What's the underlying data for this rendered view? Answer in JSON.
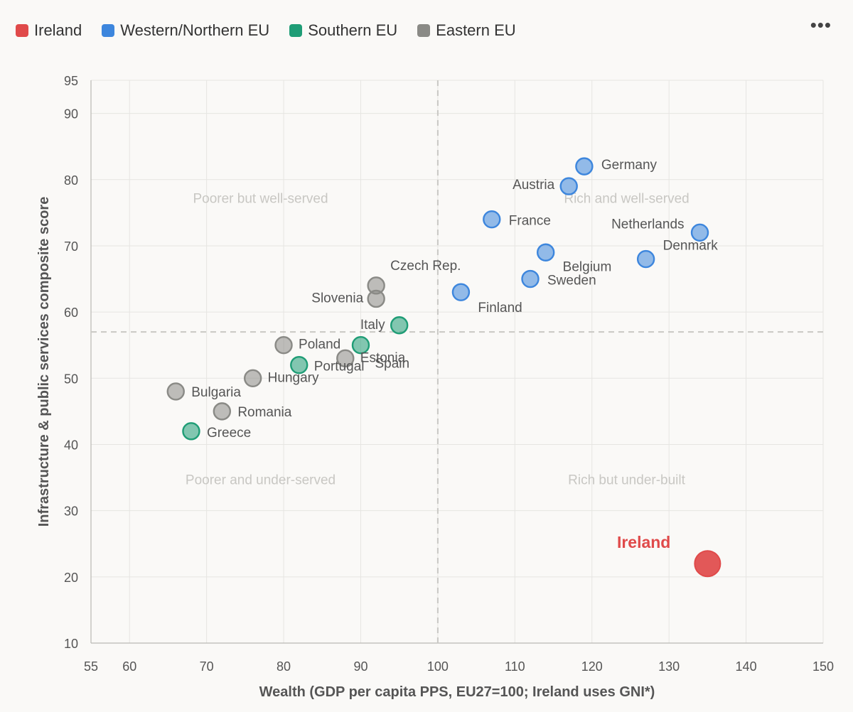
{
  "legend": {
    "items": [
      {
        "label": "Ireland",
        "color": "#e04a4a"
      },
      {
        "label": "Western/Northern EU",
        "color": "#3d86dd"
      },
      {
        "label": "Southern EU",
        "color": "#1f9d76"
      },
      {
        "label": "Eastern EU",
        "color": "#8a8a86"
      }
    ]
  },
  "menu": {
    "more_label": "•••"
  },
  "chart_data": {
    "type": "scatter",
    "title": "",
    "xlabel": "Wealth (GDP per capita PPS, EU27=100; Ireland uses GNI*)",
    "ylabel": "Infrastructure & public services composite score",
    "xlim": [
      55,
      150
    ],
    "ylim": [
      10,
      95
    ],
    "xticks": [
      55,
      60,
      70,
      80,
      90,
      100,
      110,
      120,
      130,
      140,
      150
    ],
    "yticks": [
      10,
      20,
      30,
      40,
      50,
      60,
      70,
      80,
      90,
      95
    ],
    "grid": true,
    "reference_lines": {
      "x": 100,
      "y": 57
    },
    "quadrant_labels": [
      {
        "text": "Poorer but well-served",
        "x": 77,
        "y": 76.5
      },
      {
        "text": "Rich and well-served",
        "x": 124.5,
        "y": 76.5
      },
      {
        "text": "Poorer and under-served",
        "x": 77,
        "y": 34
      },
      {
        "text": "Rich but under-built",
        "x": 124.5,
        "y": 34
      }
    ],
    "series": [
      {
        "name": "Ireland",
        "color": "#e04a4a",
        "points": [
          {
            "label": "Ireland",
            "x": 135,
            "y": 22
          }
        ]
      },
      {
        "name": "Western/Northern EU",
        "color": "#3d86dd",
        "points": [
          {
            "label": "Germany",
            "x": 119,
            "y": 82
          },
          {
            "label": "Austria",
            "x": 117,
            "y": 79
          },
          {
            "label": "France",
            "x": 107,
            "y": 74
          },
          {
            "label": "Netherlands",
            "x": 134,
            "y": 72
          },
          {
            "label": "Denmark",
            "x": 127,
            "y": 68
          },
          {
            "label": "Belgium",
            "x": 114,
            "y": 69
          },
          {
            "label": "Sweden",
            "x": 112,
            "y": 65
          },
          {
            "label": "Finland",
            "x": 103,
            "y": 63
          }
        ]
      },
      {
        "name": "Southern EU",
        "color": "#1f9d76",
        "points": [
          {
            "label": "Italy",
            "x": 95,
            "y": 58
          },
          {
            "label": "Spain",
            "x": 90,
            "y": 55
          },
          {
            "label": "Portugal",
            "x": 82,
            "y": 52
          },
          {
            "label": "Greece",
            "x": 68,
            "y": 42
          }
        ]
      },
      {
        "name": "Eastern EU",
        "color": "#8a8a86",
        "points": [
          {
            "label": "Czech Rep.",
            "x": 92,
            "y": 64
          },
          {
            "label": "Slovenia",
            "x": 92,
            "y": 62
          },
          {
            "label": "Poland",
            "x": 80,
            "y": 55
          },
          {
            "label": "Estonia",
            "x": 88,
            "y": 53
          },
          {
            "label": "Hungary",
            "x": 76,
            "y": 50
          },
          {
            "label": "Bulgaria",
            "x": 66,
            "y": 48
          },
          {
            "label": "Romania",
            "x": 72,
            "y": 45
          }
        ]
      }
    ]
  }
}
